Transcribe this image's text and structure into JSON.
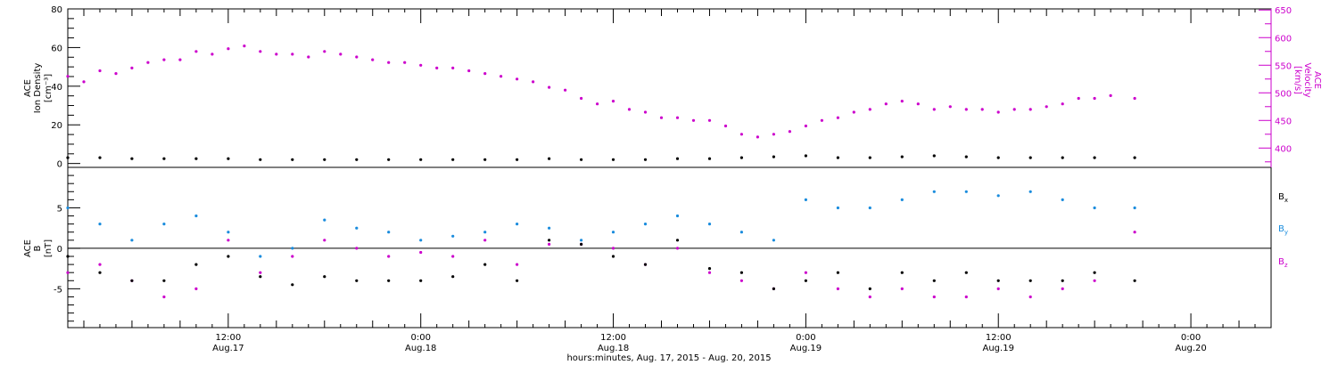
{
  "figure": {
    "xlabel": "hours:minutes, Aug. 17, 2015 - Aug. 20, 2015",
    "time_ticks": [
      {
        "time": "12:00",
        "date": "Aug.17",
        "hours": 12
      },
      {
        "time": "0:00",
        "date": "Aug.18",
        "hours": 24
      },
      {
        "time": "12:00",
        "date": "Aug.18",
        "hours": 36
      },
      {
        "time": "0:00",
        "date": "Aug.19",
        "hours": 48
      },
      {
        "time": "12:00",
        "date": "Aug.19",
        "hours": 60
      },
      {
        "time": "0:00",
        "date": "Aug.20",
        "hours": 72
      }
    ]
  },
  "colors": {
    "black": "#000000",
    "magenta": "#cc00cc",
    "blue": "#1a8cdd"
  },
  "chart_data": [
    {
      "type": "scatter",
      "panel": "top",
      "ylabel_left": [
        "ACE",
        "Ion Density",
        "[cm⁻³]"
      ],
      "ylabel_right": [
        "ACE",
        "Velocity",
        "[km/s]"
      ],
      "left_ticks": [
        "80",
        "60",
        "40",
        "20",
        "0"
      ],
      "right_ticks": [
        "650",
        "600",
        "550",
        "500",
        "450",
        "400"
      ],
      "ylim_left": [
        -2,
        80
      ],
      "ylim_right": [
        365,
        652
      ],
      "xlim_hours": [
        2,
        77
      ],
      "grid": false,
      "series": [
        {
          "quantity": "Ion Density",
          "color": "#000000",
          "axis": "left",
          "x_hours": [
            2,
            4,
            6,
            8,
            10,
            12,
            14,
            16,
            18,
            20,
            22,
            24,
            26,
            28,
            30,
            32,
            34,
            36,
            38,
            40,
            42,
            44,
            46,
            48,
            50,
            52,
            54,
            56,
            58,
            60,
            62,
            64,
            66,
            68.5
          ],
          "y": [
            3,
            3,
            2.5,
            2.5,
            2.5,
            2.5,
            2,
            2,
            2,
            2,
            2,
            2,
            2,
            2,
            2,
            2.5,
            2,
            2,
            2,
            2.5,
            2.5,
            3,
            3.5,
            4,
            3,
            3,
            3.5,
            4,
            3.5,
            3,
            3,
            3,
            3,
            3
          ]
        },
        {
          "quantity": "Velocity",
          "color": "#cc00cc",
          "axis": "right",
          "x_hours": [
            2,
            3,
            4,
            5,
            6,
            7,
            8,
            9,
            10,
            11,
            12,
            13,
            14,
            15,
            16,
            17,
            18,
            19,
            20,
            21,
            22,
            23,
            24,
            25,
            26,
            27,
            28,
            29,
            30,
            31,
            32,
            33,
            34,
            35,
            36,
            37,
            38,
            39,
            40,
            41,
            42,
            43,
            44,
            45,
            46,
            47,
            48,
            49,
            50,
            51,
            52,
            53,
            54,
            55,
            56,
            57,
            58,
            59,
            60,
            61,
            62,
            63,
            64,
            65,
            66,
            67,
            68.5
          ],
          "y": [
            530,
            520,
            540,
            535,
            545,
            555,
            560,
            560,
            575,
            570,
            580,
            585,
            575,
            570,
            570,
            565,
            575,
            570,
            565,
            560,
            555,
            555,
            550,
            545,
            545,
            540,
            535,
            530,
            525,
            520,
            510,
            505,
            490,
            480,
            485,
            470,
            465,
            455,
            455,
            450,
            450,
            440,
            425,
            420,
            425,
            430,
            440,
            450,
            455,
            465,
            470,
            480,
            485,
            480,
            470,
            475,
            470,
            470,
            465,
            470,
            470,
            475,
            480,
            490,
            490,
            495,
            490
          ]
        }
      ]
    },
    {
      "type": "scatter",
      "panel": "bottom",
      "ylabel_left": [
        "ACE",
        "B",
        "[nT]"
      ],
      "left_ticks": [
        "5",
        "0",
        "-5"
      ],
      "ylim": [
        -9.8,
        10
      ],
      "xlim_hours": [
        2,
        77
      ],
      "grid": false,
      "zero_line": true,
      "legend_position": "right",
      "legend": [
        {
          "main": "B",
          "sub": "x",
          "color": "#000000"
        },
        {
          "main": "B",
          "sub": "y",
          "color": "#1a8cdd"
        },
        {
          "main": "B",
          "sub": "z",
          "color": "#cc00cc"
        }
      ],
      "series": [
        {
          "quantity": "Bx",
          "color": "#000000",
          "x_hours": [
            2,
            4,
            6,
            8,
            10,
            12,
            14,
            16,
            18,
            20,
            22,
            24,
            26,
            28,
            30,
            32,
            34,
            36,
            38,
            40,
            42,
            44,
            46,
            48,
            50,
            52,
            54,
            56,
            58,
            60,
            62,
            64,
            66,
            68.5
          ],
          "y": [
            -1,
            -3,
            -4,
            -4,
            -2,
            -1,
            -3.5,
            -4.5,
            -3.5,
            -4,
            -4,
            -4,
            -3.5,
            -2,
            -4,
            1,
            0.5,
            -1,
            -2,
            1,
            -2.5,
            -3,
            -5,
            -4,
            -3,
            -5,
            -3,
            -4,
            -3,
            -4,
            -4,
            -4,
            -3,
            -4
          ]
        },
        {
          "quantity": "By",
          "color": "#1a8cdd",
          "x_hours": [
            2,
            4,
            6,
            8,
            10,
            12,
            14,
            16,
            18,
            20,
            22,
            24,
            26,
            28,
            30,
            32,
            34,
            36,
            38,
            40,
            42,
            44,
            46,
            48,
            50,
            52,
            54,
            56,
            58,
            60,
            62,
            64,
            66,
            68.5
          ],
          "y": [
            5,
            3,
            1,
            3,
            4,
            2,
            -1,
            0,
            3.5,
            2.5,
            2,
            1,
            1.5,
            2,
            3,
            2.5,
            1,
            2,
            3,
            4,
            3,
            2,
            1,
            6,
            5,
            5,
            6,
            7,
            7,
            6.5,
            7,
            6,
            5,
            5
          ]
        },
        {
          "quantity": "Bz",
          "color": "#cc00cc",
          "x_hours": [
            2,
            4,
            6,
            8,
            10,
            12,
            14,
            16,
            18,
            20,
            22,
            24,
            26,
            28,
            30,
            32,
            34,
            36,
            38,
            40,
            42,
            44,
            46,
            48,
            50,
            52,
            54,
            56,
            58,
            60,
            62,
            64,
            66,
            68.5
          ],
          "y": [
            -3,
            -2,
            -4,
            -6,
            -5,
            1,
            -3,
            -1,
            1,
            0,
            -1,
            -0.5,
            -1,
            1,
            -2,
            0.5,
            0.5,
            0,
            -2,
            0,
            -3,
            -4,
            -5,
            -3,
            -5,
            -6,
            -5,
            -6,
            -6,
            -5,
            -6,
            -5,
            -4,
            2
          ]
        }
      ]
    }
  ]
}
